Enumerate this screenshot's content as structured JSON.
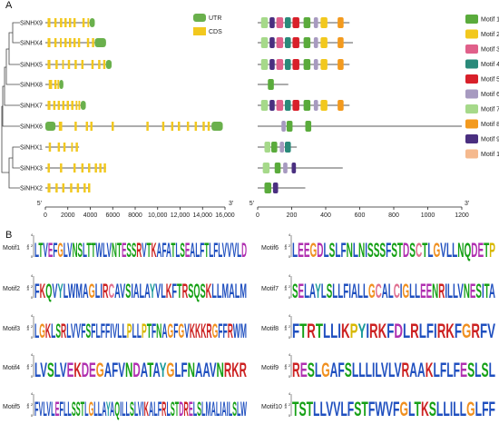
{
  "panel_a": {
    "label": "A",
    "genes": [
      "SiNHX9",
      "SiNHX4",
      "SiNHX5",
      "SiNHX8",
      "SiNHX7",
      "SiNHX6",
      "SiNHX1",
      "SiNHX3",
      "SiNHX2"
    ],
    "gene_structure": {
      "legend": [
        {
          "name": "UTR",
          "color": "#6ab04c"
        },
        {
          "name": "CDS",
          "color": "#f2c81e"
        }
      ],
      "xlim": [
        0,
        16000
      ],
      "xticks": [
        0,
        2000,
        4000,
        6000,
        8000,
        {
          "value": 10000,
          "label": "10,000"
        },
        {
          "value": 12000,
          "label": "12,000"
        },
        {
          "value": 14000,
          "label": "14,000"
        },
        {
          "value": 16000,
          "label": "16,000"
        }
      ],
      "end_labels": [
        "5'",
        "3'"
      ],
      "structures": [
        {
          "length": 4400,
          "utr": [
            [
              3950,
              4400
            ]
          ],
          "cds": [
            [
              200,
              450
            ],
            [
              800,
              1000
            ],
            [
              1300,
              1500
            ],
            [
              1700,
              1900
            ],
            [
              2100,
              2300
            ],
            [
              2500,
              2700
            ],
            [
              3300,
              3500
            ],
            [
              3750,
              3900
            ]
          ]
        },
        {
          "length": 5400,
          "utr": [
            [
              4400,
              5400
            ]
          ],
          "cds": [
            [
              200,
              450
            ],
            [
              800,
              1000
            ],
            [
              1300,
              1450
            ],
            [
              1700,
              1900
            ],
            [
              2100,
              2300
            ],
            [
              2500,
              2700
            ],
            [
              2900,
              3100
            ],
            [
              3700,
              3900
            ],
            [
              4150,
              4350
            ]
          ]
        },
        {
          "length": 5900,
          "utr": [
            [
              5400,
              5900
            ]
          ],
          "cds": [
            [
              200,
              450
            ],
            [
              900,
              1100
            ],
            [
              1500,
              1650
            ],
            [
              2000,
              2200
            ],
            [
              2600,
              2800
            ],
            [
              3200,
              3400
            ],
            [
              4100,
              4300
            ],
            [
              4700,
              4900
            ],
            [
              5150,
              5350
            ]
          ]
        },
        {
          "length": 1600,
          "utr": [
            [
              1250,
              1600
            ]
          ],
          "cds": [
            [
              300,
              600
            ],
            [
              800,
              1000
            ],
            [
              1080,
              1230
            ]
          ]
        },
        {
          "length": 3600,
          "utr": [
            [
              3150,
              3600
            ]
          ],
          "cds": [
            [
              200,
              450
            ],
            [
              700,
              900
            ],
            [
              1100,
              1300
            ],
            [
              1500,
              1700
            ],
            [
              1900,
              2100
            ],
            [
              2300,
              2500
            ],
            [
              2700,
              2850
            ],
            [
              2950,
              3100
            ]
          ]
        },
        {
          "length": 15800,
          "utr": [
            [
              0,
              900
            ],
            [
              14800,
              15800
            ]
          ],
          "cds": [
            [
              1200,
              1500
            ],
            [
              2600,
              2800
            ],
            [
              3600,
              3800
            ],
            [
              4000,
              4200
            ],
            [
              5900,
              6100
            ],
            [
              9000,
              9200
            ],
            [
              10400,
              10600
            ],
            [
              11200,
              11400
            ],
            [
              11800,
              12000
            ],
            [
              12600,
              12800
            ],
            [
              13300,
              13500
            ],
            [
              14000,
              14200
            ],
            [
              14450,
              14650
            ]
          ]
        },
        {
          "length": 3000,
          "utr": [],
          "cds": [
            [
              300,
              500
            ],
            [
              1100,
              1300
            ],
            [
              1600,
              1800
            ],
            [
              2300,
              2450
            ],
            [
              2700,
              2900
            ]
          ]
        },
        {
          "length": 5400,
          "utr": [],
          "cds": [
            [
              200,
              400
            ],
            [
              1300,
              1500
            ],
            [
              2500,
              2700
            ],
            [
              3200,
              3400
            ],
            [
              3800,
              4000
            ],
            [
              4400,
              4600
            ],
            [
              4800,
              5000
            ],
            [
              5200,
              5400
            ]
          ]
        },
        {
          "length": 4000,
          "utr": [],
          "cds": [
            [
              200,
              450
            ],
            [
              900,
              1100
            ],
            [
              1500,
              1700
            ],
            [
              2200,
              2400
            ],
            [
              2800,
              3000
            ],
            [
              3400,
              3600
            ],
            [
              3800,
              4000
            ]
          ]
        }
      ]
    },
    "motif_structure": {
      "legend": [
        {
          "name": "Motif 1",
          "color": "#5aab3c"
        },
        {
          "name": "Motif 2",
          "color": "#f2c81e"
        },
        {
          "name": "Motif 3",
          "color": "#e0608a"
        },
        {
          "name": "Motif 4",
          "color": "#2a8a7a"
        },
        {
          "name": "Motif 5",
          "color": "#d8202a"
        },
        {
          "name": "Motif 6",
          "color": "#a79ac0"
        },
        {
          "name": "Motif 7",
          "color": "#a6d98a"
        },
        {
          "name": "Motif 8",
          "color": "#f39a1e"
        },
        {
          "name": "Motif 9",
          "color": "#4a2f80"
        },
        {
          "name": "Motif 10",
          "color": "#f5b98e"
        }
      ],
      "xlim": [
        0,
        1200
      ],
      "xticks": [
        0,
        200,
        400,
        600,
        800,
        1000,
        1200
      ],
      "end_labels": [
        "5'",
        "3'"
      ],
      "proteins": [
        {
          "length": 540,
          "motifs": [
            [
              7,
              20,
              60
            ],
            [
              9,
              70,
              100
            ],
            [
              3,
              110,
              150
            ],
            [
              4,
              160,
              195
            ],
            [
              5,
              205,
              245
            ],
            [
              1,
              270,
              310
            ],
            [
              6,
              330,
              355
            ],
            [
              2,
              370,
              410
            ],
            [
              8,
              470,
              505
            ]
          ]
        },
        {
          "length": 560,
          "motifs": [
            [
              7,
              20,
              60
            ],
            [
              9,
              70,
              100
            ],
            [
              3,
              110,
              150
            ],
            [
              4,
              160,
              195
            ],
            [
              5,
              205,
              245
            ],
            [
              1,
              270,
              310
            ],
            [
              6,
              330,
              355
            ],
            [
              2,
              370,
              410
            ],
            [
              8,
              470,
              505
            ]
          ]
        },
        {
          "length": 540,
          "motifs": [
            [
              7,
              20,
              60
            ],
            [
              9,
              70,
              100
            ],
            [
              3,
              110,
              150
            ],
            [
              4,
              160,
              195
            ],
            [
              5,
              205,
              245
            ],
            [
              1,
              270,
              310
            ],
            [
              6,
              330,
              355
            ],
            [
              2,
              370,
              410
            ],
            [
              8,
              470,
              505
            ]
          ]
        },
        {
          "length": 180,
          "motifs": [
            [
              1,
              60,
              95
            ]
          ]
        },
        {
          "length": 540,
          "motifs": [
            [
              7,
              20,
              60
            ],
            [
              9,
              70,
              100
            ],
            [
              3,
              110,
              150
            ],
            [
              4,
              160,
              195
            ],
            [
              5,
              205,
              245
            ],
            [
              1,
              270,
              310
            ],
            [
              6,
              330,
              355
            ],
            [
              2,
              370,
              410
            ],
            [
              8,
              470,
              505
            ]
          ]
        },
        {
          "length": 1200,
          "motifs": [
            [
              6,
              140,
              165
            ],
            [
              1,
              170,
              205
            ],
            [
              1,
              280,
              315
            ]
          ]
        },
        {
          "length": 230,
          "motifs": [
            [
              7,
              40,
              75
            ],
            [
              1,
              80,
              115
            ],
            [
              6,
              130,
              155
            ],
            [
              4,
              160,
              195
            ]
          ]
        },
        {
          "length": 500,
          "motifs": [
            [
              7,
              30,
              70
            ],
            [
              1,
              100,
              135
            ],
            [
              6,
              150,
              175
            ],
            [
              9,
              200,
              225
            ]
          ]
        },
        {
          "length": 280,
          "motifs": [
            [
              1,
              40,
              80
            ],
            [
              9,
              90,
              120
            ]
          ]
        }
      ]
    }
  },
  "panel_b": {
    "label": "B",
    "logo_ylabel": "bits",
    "logo_yticks": [
      0,
      2,
      4
    ],
    "motifs": [
      {
        "name": "Motif1",
        "logo": "LTVEFGLVNSLTTWLVNTESSRVTKAFATLSEALFTLFLVVVLD"
      },
      {
        "name": "Motif2",
        "logo": "FKQVYLWMAGLIRCAVSIALAYVLKFTRSQSKLLMALM"
      },
      {
        "name": "Motif3",
        "logo": "LGKLSRLVVFSFLFFIVLLPLLPTFNAGFGVKKKRGFFRWM"
      },
      {
        "name": "Motif4",
        "logo": "LVSLVEKDEGAFVNDATAYGLFNAAVNRKR"
      },
      {
        "name": "Motif5",
        "logo": "FVLVLEFLLSSTLGLLAYAQILLSLVIKALFRLSTDRELSLMALIAILSLW"
      },
      {
        "name": "Motif6",
        "logo": "LEEGDLSLFNLNISSSFSTDSCTLGVLLNQDETP"
      },
      {
        "name": "Motif7",
        "logo": "SELAYLSLLFIALLGCALCIGLLEENRILLVNESITA"
      },
      {
        "name": "Motif8",
        "logo": "FTRTLLIKPYIRKFDLRLFIRKFGRFV"
      },
      {
        "name": "Motif9",
        "logo": "RESLGAFSLLLILVLVRAAKLFLFESLSL"
      },
      {
        "name": "Motif10",
        "logo": "TSTLLVVLFSTFWVFGLTKSLLILLGLFF"
      }
    ]
  }
}
